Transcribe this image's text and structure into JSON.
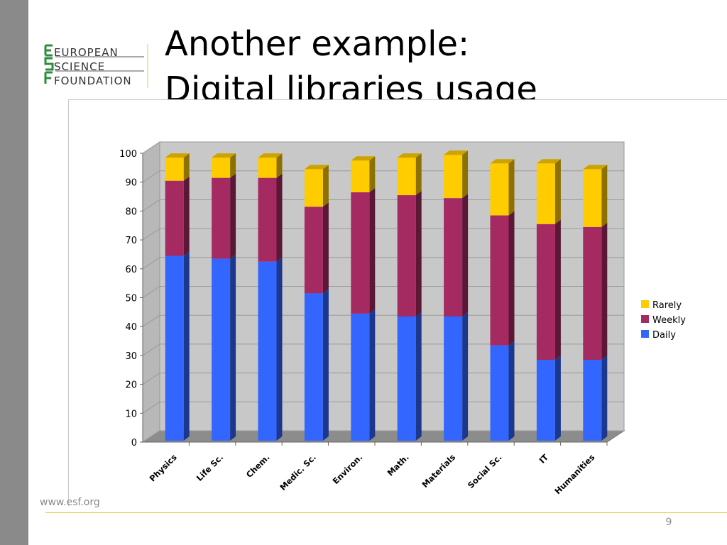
{
  "slide": {
    "title_line1": "Another example:",
    "title_line2": "Digital libraries usage",
    "logo_text": [
      "EUROPEAN",
      "SCIENCE",
      "FOUNDATION"
    ],
    "footer_url": "www.esf.org",
    "page_number": "9"
  },
  "colors": {
    "daily": "#3366ff",
    "weekly": "#a52a62",
    "rarely": "#ffcc00",
    "plot_bg": "#c8c8c8",
    "logo_green": "#2e8b3e"
  },
  "chart_data": {
    "type": "bar",
    "stacked": true,
    "three_d": true,
    "categories": [
      "Physics",
      "Life Sc.",
      "Chem.",
      "Medic. Sc.",
      "Environ.",
      "Math.",
      "Materials",
      "Social Sc.",
      "IT",
      "Humanities"
    ],
    "series": [
      {
        "name": "Daily",
        "values": [
          64,
          63,
          62,
          51,
          44,
          43,
          43,
          33,
          28,
          28
        ]
      },
      {
        "name": "Weekly",
        "values": [
          26,
          28,
          29,
          30,
          42,
          42,
          41,
          45,
          47,
          46
        ]
      },
      {
        "name": "Rarely",
        "values": [
          8,
          7,
          7,
          13,
          11,
          13,
          15,
          18,
          21,
          20
        ]
      }
    ],
    "ylim": [
      0,
      100
    ],
    "yticks": [
      0,
      10,
      20,
      30,
      40,
      50,
      60,
      70,
      80,
      90,
      100
    ],
    "grid": true,
    "legend_position": "right",
    "legend_order": [
      "Rarely",
      "Weekly",
      "Daily"
    ]
  }
}
